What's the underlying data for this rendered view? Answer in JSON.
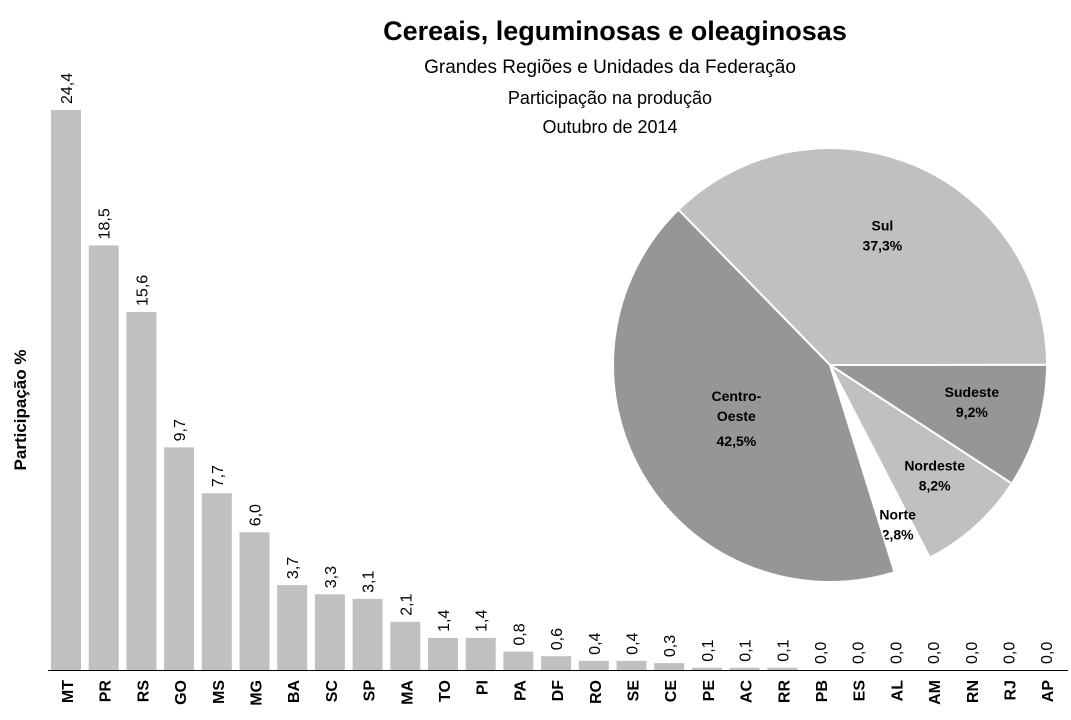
{
  "chart_data": [
    {
      "type": "bar",
      "title": "Cereais, leguminosas e oleaginosas",
      "subtitle": [
        "Grandes Regiões e Unidades da Federação",
        "Participação na produção",
        "Outubro de 2014"
      ],
      "ylabel": "Participação %",
      "categories": [
        "MT",
        "PR",
        "RS",
        "GO",
        "MS",
        "MG",
        "BA",
        "SC",
        "SP",
        "MA",
        "TO",
        "PI",
        "PA",
        "DF",
        "RO",
        "SE",
        "CE",
        "PE",
        "AC",
        "RR",
        "PB",
        "ES",
        "AL",
        "AM",
        "RN",
        "RJ",
        "AP"
      ],
      "values": [
        24.4,
        18.5,
        15.6,
        9.7,
        7.7,
        6,
        3.7,
        3.3,
        3.1,
        2.1,
        1.4,
        1.4,
        0.8,
        0.6,
        0.4,
        0.4,
        0.3,
        0.1,
        0.1,
        0.1,
        0,
        0,
        0,
        0,
        0,
        0,
        0
      ],
      "value_labels": [
        "24,4",
        "18,5",
        "15,6",
        "9,7",
        "7,7",
        "6,0",
        "3,7",
        "3,3",
        "3,1",
        "2,1",
        "1,4",
        "1,4",
        "0,8",
        "0,6",
        "0,4",
        "0,4",
        "0,3",
        "0,1",
        "0,1",
        "0,1",
        "0,0",
        "0,0",
        "0,0",
        "0,0",
        "0,0",
        "0,0",
        "0,0"
      ],
      "color": "#c0c0c0"
    },
    {
      "type": "pie",
      "categories": [
        "Sul",
        "Sudeste",
        "Nordeste",
        "Norte",
        "Centro-Oeste"
      ],
      "values": [
        37.3,
        9.2,
        8.2,
        2.8,
        42.5
      ],
      "value_labels": [
        "37,3%",
        "9,2%",
        "8,2%",
        "2,8%",
        "42,5%"
      ],
      "colors": [
        "#c0c0c0",
        "#969696",
        "#c0c0c0",
        "#ffffff",
        "#969696"
      ]
    }
  ]
}
